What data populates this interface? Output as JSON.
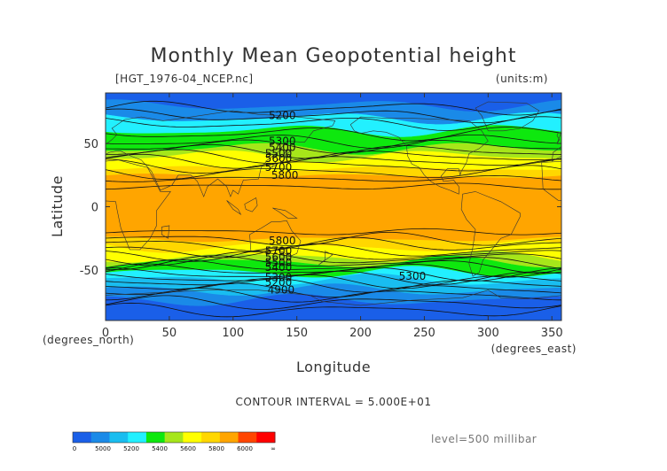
{
  "chart_data": {
    "type": "contour",
    "title": "Monthly Mean Geopotential height",
    "file_label": "[HGT_1976-04_NCEP.nc]",
    "units_label": "(units:m)",
    "xlabel": "Longitude",
    "ylabel": "Latitude",
    "x_unit_label": "(degrees_east)",
    "y_unit_label": "(degrees_north)",
    "xlim": [
      0,
      357.5
    ],
    "ylim": [
      -90,
      90
    ],
    "x_ticks": [
      0,
      50,
      100,
      150,
      200,
      250,
      300,
      350
    ],
    "y_ticks": [
      -50,
      0,
      50
    ],
    "contour_interval_text": "CONTOUR INTERVAL = 5.000E+01",
    "level_text": "level=500 millibar",
    "contour_labels": [
      {
        "text": "5200",
        "lon": 128,
        "lat": 72
      },
      {
        "text": "5300",
        "lon": 128,
        "lat": 52
      },
      {
        "text": "5400",
        "lon": 128,
        "lat": 47
      },
      {
        "text": "5500",
        "lon": 125,
        "lat": 42
      },
      {
        "text": "5600",
        "lon": 125,
        "lat": 38
      },
      {
        "text": "5700",
        "lon": 125,
        "lat": 31
      },
      {
        "text": "5800",
        "lon": 130,
        "lat": 25
      },
      {
        "text": "5800",
        "lon": 128,
        "lat": -27
      },
      {
        "text": "5700",
        "lon": 125,
        "lat": -35
      },
      {
        "text": "5600",
        "lon": 125,
        "lat": -40
      },
      {
        "text": "5500",
        "lon": 125,
        "lat": -44
      },
      {
        "text": "5400",
        "lon": 125,
        "lat": -48
      },
      {
        "text": "5300",
        "lon": 125,
        "lat": -56
      },
      {
        "text": "5200",
        "lon": 125,
        "lat": -60
      },
      {
        "text": "4900",
        "lon": 127,
        "lat": -66
      },
      {
        "text": "5300",
        "lon": 230,
        "lat": -55
      }
    ],
    "colorbar": {
      "labels": [
        "0",
        "5000",
        "5200",
        "5400",
        "5600",
        "5800",
        "6000",
        "∞"
      ],
      "colors": [
        "#1a5fe8",
        "#1a8ae8",
        "#19bdf0",
        "#22f0ff",
        "#0ee80e",
        "#a6e61a",
        "#ffff00",
        "#ffd700",
        "#ffa500",
        "#ff4500",
        "#ff0000"
      ]
    },
    "bands": [
      {
        "lat_north": 90,
        "lat_south": 80,
        "color": "#1a5fe8"
      },
      {
        "lat_north": 80,
        "lat_south": 70,
        "color": "#1a8ae8"
      },
      {
        "lat_north": 70,
        "lat_south": 60,
        "color": "#22f0ff"
      },
      {
        "lat_north": 60,
        "lat_south": 46,
        "color": "#0ee80e"
      },
      {
        "lat_north": 46,
        "lat_south": 40,
        "color": "#a6e61a"
      },
      {
        "lat_north": 40,
        "lat_south": 30,
        "color": "#ffff00"
      },
      {
        "lat_north": 30,
        "lat_south": 24,
        "color": "#ffd700"
      },
      {
        "lat_north": 24,
        "lat_south": -26,
        "color": "#ffa500"
      },
      {
        "lat_north": -26,
        "lat_south": -32,
        "color": "#ffd700"
      },
      {
        "lat_north": -32,
        "lat_south": -40,
        "color": "#ffff00"
      },
      {
        "lat_north": -40,
        "lat_south": -44,
        "color": "#a6e61a"
      },
      {
        "lat_north": -44,
        "lat_south": -52,
        "color": "#0ee80e"
      },
      {
        "lat_north": -52,
        "lat_south": -58,
        "color": "#22f0ff"
      },
      {
        "lat_north": -58,
        "lat_south": -66,
        "color": "#19bdf0"
      },
      {
        "lat_north": -66,
        "lat_south": -74,
        "color": "#1a8ae8"
      },
      {
        "lat_north": -74,
        "lat_south": -90,
        "color": "#1a5fe8"
      }
    ]
  }
}
